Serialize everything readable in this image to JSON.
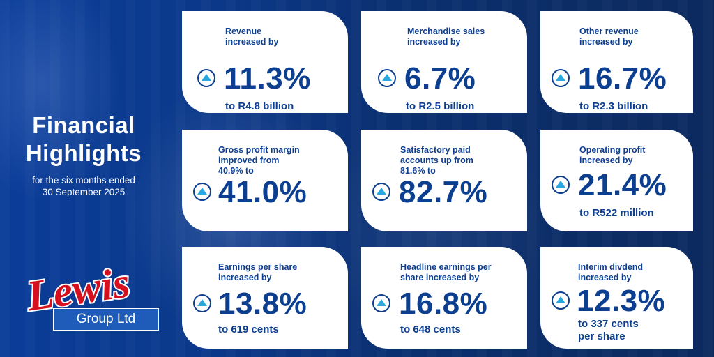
{
  "title": {
    "line1": "Financial",
    "line2": "Highlights",
    "subtitle_line1": "for the six months ended",
    "subtitle_line2": "30 September 2025"
  },
  "logo": {
    "wordmark": "Lewis",
    "box_text": "Group Ltd"
  },
  "colors": {
    "background": "#0b3a8c",
    "card": "#ffffff",
    "text": "#0d3f91",
    "arrow": "#29a8e0",
    "logo_red": "#d7101f"
  },
  "icons": {
    "increase": "up-arrow-circle-icon"
  },
  "cards": [
    {
      "label1": "Revenue",
      "label2": "increased by",
      "label3": "",
      "value": "11.3%",
      "sub1": "to R4.8 billion",
      "sub2": ""
    },
    {
      "label1": "Merchandise sales",
      "label2": "increased by",
      "label3": "",
      "value": "6.7%",
      "sub1": "to R2.5 billion",
      "sub2": ""
    },
    {
      "label1": "Other revenue",
      "label2": "increased by",
      "label3": "",
      "value": "16.7%",
      "sub1": "to R2.3 billion",
      "sub2": ""
    },
    {
      "label1": "Gross profit margin",
      "label2": "improved from",
      "label3": "40.9% to",
      "value": "41.0%",
      "sub1": "",
      "sub2": ""
    },
    {
      "label1": "Satisfactory paid",
      "label2": "accounts up from",
      "label3": "81.6% to",
      "value": "82.7%",
      "sub1": "",
      "sub2": ""
    },
    {
      "label1": "Operating profit",
      "label2": "increased by",
      "label3": "",
      "value": "21.4%",
      "sub1": "to R522 million",
      "sub2": ""
    },
    {
      "label1": "Earnings per share",
      "label2": "increased by",
      "label3": "",
      "value": "13.8%",
      "sub1": "to 619 cents",
      "sub2": ""
    },
    {
      "label1": "Headline earnings per",
      "label2": "share increased by",
      "label3": "",
      "value": "16.8%",
      "sub1": "to 648 cents",
      "sub2": ""
    },
    {
      "label1": "Interim divdend",
      "label2": "increased by",
      "label3": "",
      "value": "12.3%",
      "sub1": "to 337 cents",
      "sub2": "per share"
    }
  ]
}
